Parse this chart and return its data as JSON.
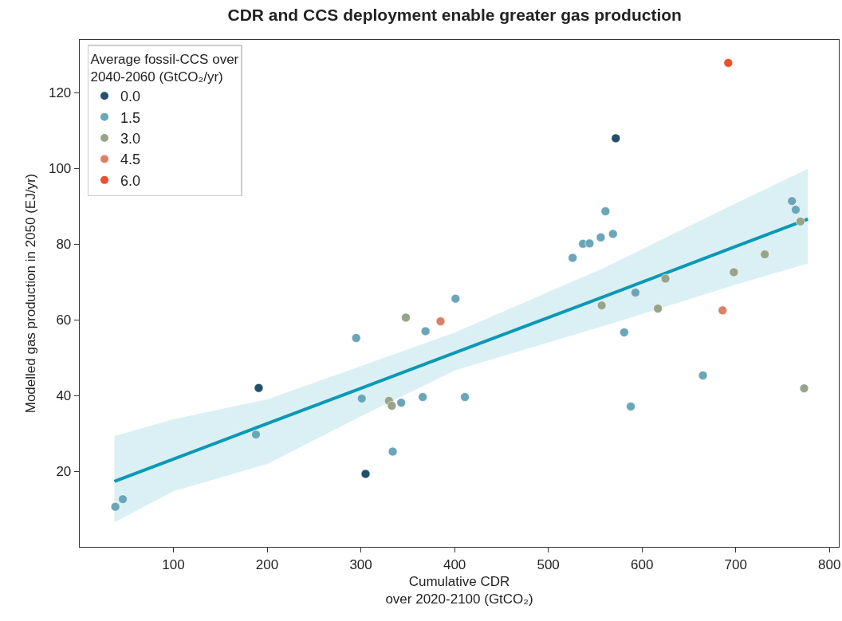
{
  "chart_data": {
    "type": "scatter",
    "title": "CDR and CCS deployment enable greater gas production",
    "xlabel": "Cumulative CDR\nover 2020-2100 (GtCO₂)",
    "ylabel": "Modelled gas production in 2050 (EJ/yr)",
    "legend_title": "Average fossil-CCS over\n2040-2060 (GtCO₂/yr)",
    "legend": "top left",
    "marker": "circle",
    "xlim": [
      0,
      810
    ],
    "xticks": [
      100,
      200,
      300,
      400,
      500,
      600,
      700,
      800
    ],
    "ylim": [
      0,
      134
    ],
    "yticks": [
      20,
      40,
      60,
      80,
      100,
      120
    ],
    "series": [
      {
        "type": "line",
        "color": "#0a98b6",
        "line_style": "solid",
        "marker": "none",
        "x": [
          37,
          100,
          200,
          300,
          400,
          561,
          700,
          777
        ],
        "values": [
          17.3,
          23.2,
          32.6,
          41.9,
          51.3,
          66.3,
          79.4,
          86.6
        ],
        "lower": [
          6.5,
          14.7,
          21.9,
          34.5,
          46.6,
          58.5,
          69.3,
          74.9
        ],
        "upper": [
          29.3,
          33.7,
          39.0,
          47.8,
          56.6,
          73.9,
          90.8,
          99.9
        ]
      },
      {
        "name": "0.0",
        "color": "#234f6e",
        "x": [
          191,
          305,
          572
        ],
        "values": [
          42.0,
          19.3,
          108.0
        ]
      },
      {
        "name": "1.5",
        "color": "#6aa6b8",
        "x": [
          38,
          46,
          188,
          295,
          301,
          334,
          343,
          366,
          369,
          401,
          411,
          526,
          537,
          544,
          556,
          561,
          569,
          581,
          588,
          593,
          665,
          760,
          764
        ],
        "values": [
          10.6,
          12.6,
          29.7,
          55.2,
          39.2,
          25.2,
          38.1,
          39.6,
          57.0,
          65.6,
          39.6,
          76.4,
          80.1,
          80.2,
          81.8,
          88.7,
          82.7,
          56.7,
          37.1,
          67.2,
          45.3,
          91.4,
          89.1
        ]
      },
      {
        "name": "3.0",
        "color": "#98a48a",
        "x": [
          330,
          333,
          348,
          557,
          617,
          625,
          698,
          731,
          769,
          773
        ],
        "values": [
          38.6,
          37.3,
          60.6,
          63.8,
          63.0,
          70.9,
          72.6,
          77.3,
          86.0,
          41.9
        ]
      },
      {
        "name": "4.5",
        "color": "#dc8068",
        "x": [
          385,
          686
        ],
        "values": [
          59.6,
          62.5
        ]
      },
      {
        "name": "6.0",
        "color": "#ef4f2e",
        "x": [
          692
        ],
        "values": [
          127.9
        ]
      }
    ]
  }
}
